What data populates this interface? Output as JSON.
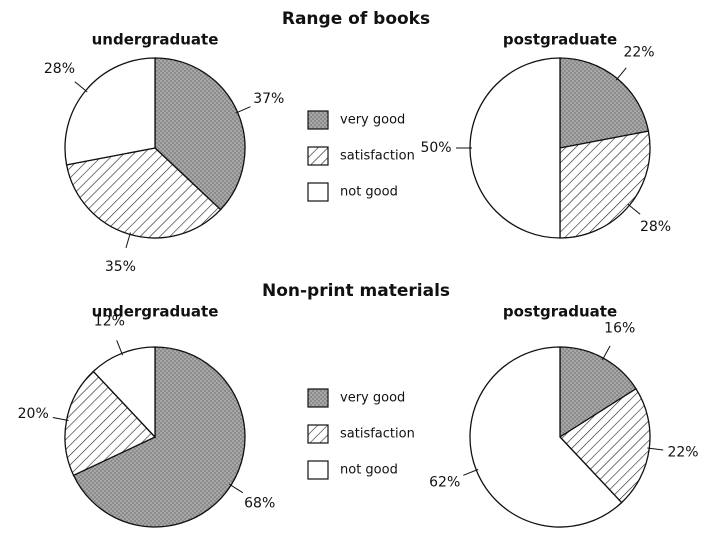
{
  "chart_data": [
    {
      "type": "pie",
      "title": "Range of books",
      "subtitle": "undergraduate",
      "categories": [
        "very good",
        "satisfaction",
        "not good"
      ],
      "values": [
        37,
        35,
        28
      ],
      "value_labels": [
        "37%",
        "35%",
        "28%"
      ],
      "fills": [
        "dots",
        "hatch",
        "plain"
      ]
    },
    {
      "type": "pie",
      "subtitle": "postgraduate",
      "categories": [
        "very good",
        "satisfaction",
        "not good"
      ],
      "values": [
        22,
        28,
        50
      ],
      "value_labels": [
        "22%",
        "28%",
        "50%"
      ],
      "fills": [
        "dots",
        "hatch",
        "plain"
      ]
    },
    {
      "type": "pie",
      "title": "Non-print materials",
      "subtitle": "undergraduate",
      "categories": [
        "very good",
        "satisfaction",
        "not good"
      ],
      "values": [
        68,
        20,
        12
      ],
      "value_labels": [
        "68%",
        "20%",
        "12%"
      ],
      "fills": [
        "dots",
        "hatch",
        "plain"
      ]
    },
    {
      "type": "pie",
      "subtitle": "postgraduate",
      "categories": [
        "very good",
        "satisfaction",
        "not good"
      ],
      "values": [
        16,
        22,
        62
      ],
      "value_labels": [
        "16%",
        "22%",
        "62%"
      ],
      "fills": [
        "dots",
        "hatch",
        "plain"
      ]
    }
  ]
}
